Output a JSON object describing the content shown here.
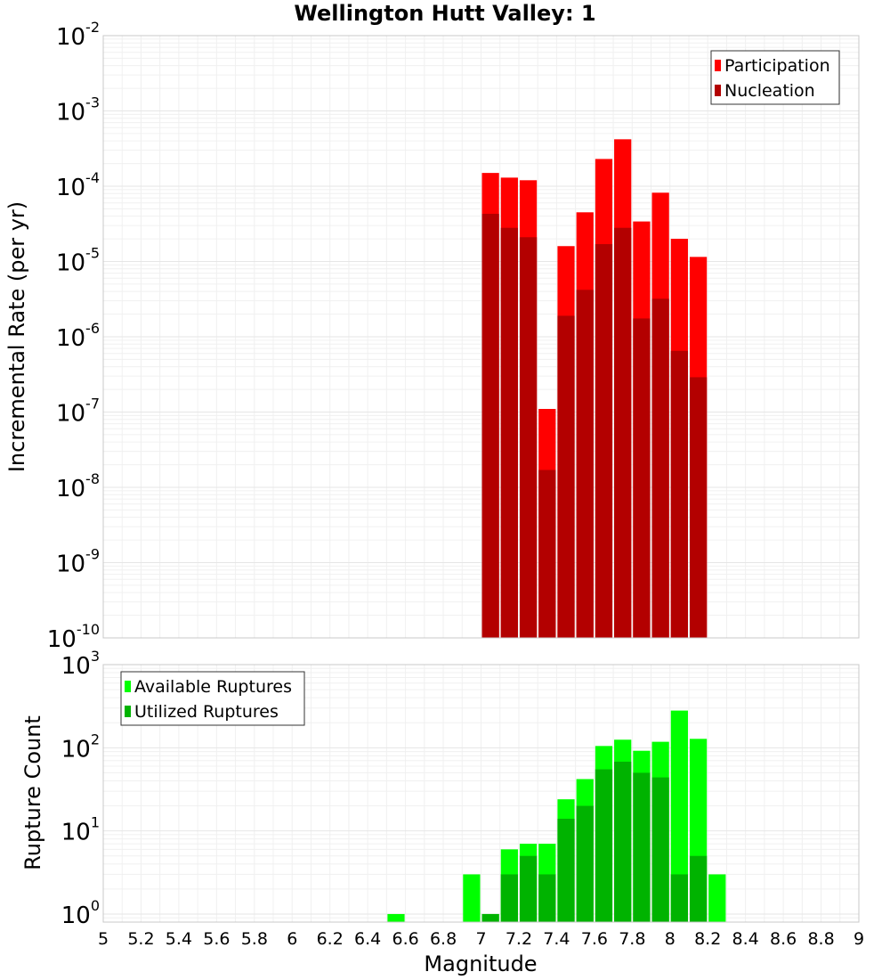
{
  "chart_data": [
    {
      "type": "bar",
      "title": "Wellington Hutt Valley: 1",
      "ylabel": "Incremental Rate (per yr)",
      "yscale": "log",
      "ylim": [
        1e-10,
        0.01
      ],
      "ytick_exponents": [
        "-2",
        "-3",
        "-4",
        "-5",
        "-6",
        "-7",
        "-8",
        "-9",
        "-10"
      ],
      "xlim": [
        5.0,
        9.0
      ],
      "bar_width": 0.1,
      "grid": true,
      "legend_position": "top-right",
      "colors": {
        "Participation": "#ff0000",
        "Nucleation": "#b30000"
      },
      "series": [
        {
          "name": "Participation",
          "x": [
            7.05,
            7.15,
            7.25,
            7.35,
            7.45,
            7.55,
            7.65,
            7.75,
            7.85,
            7.95,
            8.05,
            8.15
          ],
          "values": [
            0.00015,
            0.00013,
            0.00012,
            1.1e-07,
            1.6e-05,
            4.5e-05,
            0.00023,
            0.00042,
            3.4e-05,
            8.2e-05,
            2e-05,
            1.15e-05
          ]
        },
        {
          "name": "Nucleation",
          "x": [
            7.05,
            7.15,
            7.25,
            7.35,
            7.45,
            7.55,
            7.65,
            7.75,
            7.85,
            7.95,
            8.05,
            8.15
          ],
          "values": [
            4.3e-05,
            2.8e-05,
            2.1e-05,
            1.7e-08,
            1.9e-06,
            4.2e-06,
            1.7e-05,
            2.8e-05,
            1.75e-06,
            3.2e-06,
            6.5e-07,
            2.9e-07
          ]
        }
      ]
    },
    {
      "type": "bar",
      "xlabel": "Magnitude",
      "ylabel": "Rupture Count",
      "yscale": "log",
      "ylim": [
        0.8,
        1000
      ],
      "ytick_exponents": [
        "3",
        "2",
        "1",
        "0"
      ],
      "xlim": [
        5.0,
        9.0
      ],
      "bar_width": 0.1,
      "grid": true,
      "legend_position": "top-left",
      "colors": {
        "Available Ruptures": "#00ff00",
        "Utilized Ruptures": "#00b300"
      },
      "series": [
        {
          "name": "Available Ruptures",
          "x": [
            6.55,
            6.95,
            7.05,
            7.15,
            7.25,
            7.35,
            7.45,
            7.55,
            7.65,
            7.75,
            7.85,
            7.95,
            8.05,
            8.15,
            8.25
          ],
          "values": [
            1,
            3,
            1,
            6,
            7,
            7,
            24,
            42,
            105,
            125,
            92,
            118,
            280,
            128,
            3
          ]
        },
        {
          "name": "Utilized Ruptures",
          "x": [
            7.05,
            7.15,
            7.25,
            7.35,
            7.45,
            7.55,
            7.65,
            7.75,
            7.85,
            7.95,
            8.05,
            8.15
          ],
          "values": [
            1,
            3,
            5,
            3,
            14,
            20,
            55,
            68,
            50,
            44,
            3,
            5
          ]
        }
      ],
      "x_ticks": [
        "5",
        "5.2",
        "5.4",
        "5.6",
        "5.8",
        "6",
        "6.2",
        "6.4",
        "6.6",
        "6.8",
        "7",
        "7.2",
        "7.4",
        "7.6",
        "7.8",
        "8",
        "8.2",
        "8.4",
        "8.6",
        "8.8",
        "9"
      ]
    }
  ]
}
